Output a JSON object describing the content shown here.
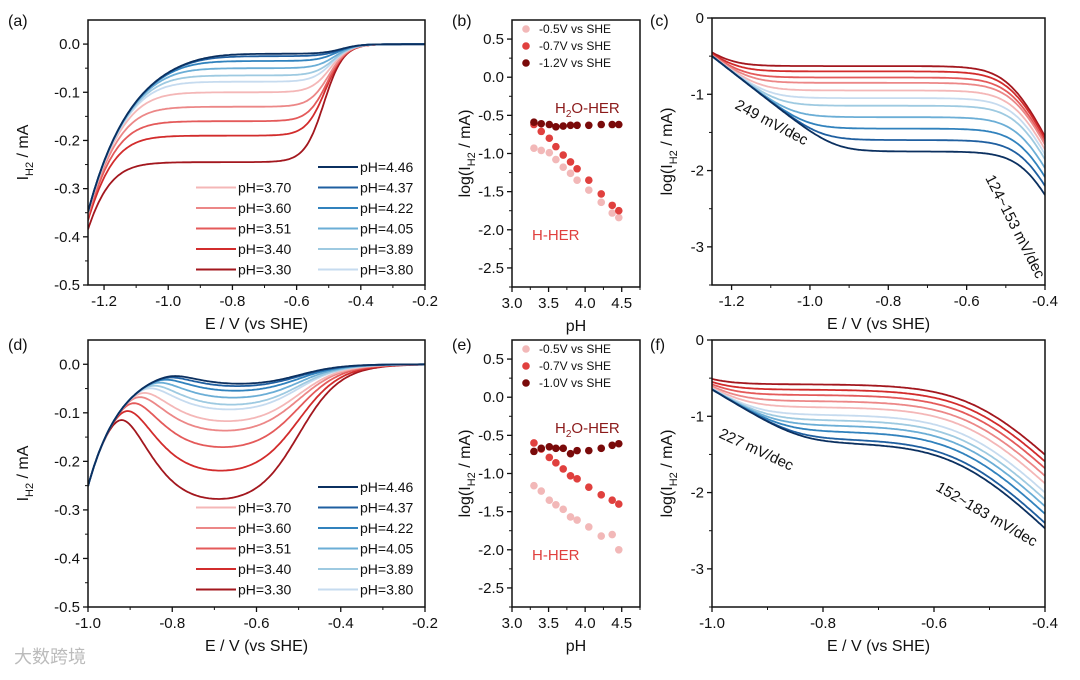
{
  "watermark": "大数跨境",
  "series_info": [
    {
      "name": "pH=3.30",
      "pH": 3.3,
      "color": "#a3171e"
    },
    {
      "name": "pH=3.40",
      "pH": 3.4,
      "color": "#d22c2c"
    },
    {
      "name": "pH=3.51",
      "pH": 3.51,
      "color": "#e45a5a"
    },
    {
      "name": "pH=3.60",
      "pH": 3.6,
      "color": "#ec8787"
    },
    {
      "name": "pH=3.70",
      "pH": 3.7,
      "color": "#f4b7b7"
    },
    {
      "name": "pH=3.80",
      "pH": 3.8,
      "color": "#c6dbef"
    },
    {
      "name": "pH=3.89",
      "pH": 3.89,
      "color": "#9ecae1"
    },
    {
      "name": "pH=4.05",
      "pH": 4.05,
      "color": "#6baed6"
    },
    {
      "name": "pH=4.22",
      "pH": 4.22,
      "color": "#3182bd"
    },
    {
      "name": "pH=4.37",
      "pH": 4.37,
      "color": "#1f5fa0"
    },
    {
      "name": "pH=4.46",
      "pH": 4.46,
      "color": "#0b3060"
    }
  ],
  "chart_data": [
    {
      "id": "a",
      "panel_label": "(a)",
      "type": "line",
      "xlabel": "E / V (vs SHE)",
      "ylabel": {
        "main": "I",
        "sub": "H2",
        "rest": " / mA"
      },
      "xlim": [
        -1.25,
        -0.2
      ],
      "ylim": [
        -0.5,
        0.05
      ],
      "xticks": [
        "-1.2",
        "-1.0",
        "-0.8",
        "-0.6",
        "-0.4",
        "-0.2"
      ],
      "yticks": [
        "0.0",
        "-0.1",
        "-0.2",
        "-0.3",
        "-0.4",
        "-0.5"
      ],
      "model": "I = -softmax3(plateau*sigmoid((E-e_half)/0.03), 0.02*exp(-(E+0.85)/0.14))",
      "plateau": [
        -0.245,
        -0.19,
        -0.16,
        -0.13,
        -0.1,
        -0.078,
        -0.065,
        -0.05,
        -0.035,
        -0.025,
        -0.02
      ],
      "e_half": [
        -0.515,
        -0.51,
        -0.505,
        -0.5,
        -0.495,
        -0.49,
        -0.485,
        -0.48,
        -0.475,
        -0.465,
        -0.46
      ]
    },
    {
      "id": "b",
      "panel_label": "(b)",
      "type": "scatter",
      "xlabel": "pH",
      "ylabel": {
        "main": "log(I",
        "sub": "H2",
        "rest": " / mA)"
      },
      "xlim": [
        3.0,
        4.75
      ],
      "ylim": [
        -2.75,
        0.75
      ],
      "xticks": [
        "3.0",
        "3.5",
        "4.0",
        "4.5"
      ],
      "yticks": [
        "0.5",
        "0.0",
        "-0.5",
        "-1.0",
        "-1.5",
        "-2.0",
        "-2.5"
      ],
      "x": [
        3.3,
        3.4,
        3.51,
        3.6,
        3.7,
        3.8,
        3.89,
        4.05,
        4.22,
        4.37,
        4.46
      ],
      "series": [
        {
          "name": "-0.5V vs SHE",
          "color": "#f2b8b8",
          "values": [
            -0.93,
            -0.96,
            -0.99,
            -1.08,
            -1.18,
            -1.26,
            -1.35,
            -1.48,
            -1.64,
            -1.78,
            -1.84
          ]
        },
        {
          "name": "-0.7V vs SHE",
          "color": "#e0403e",
          "values": [
            -0.62,
            -0.71,
            -0.8,
            -0.91,
            -1.02,
            -1.11,
            -1.2,
            -1.35,
            -1.53,
            -1.68,
            -1.75
          ]
        },
        {
          "name": "-1.2V vs SHE",
          "color": "#7a0a0a",
          "values": [
            -0.59,
            -0.61,
            -0.62,
            -0.65,
            -0.64,
            -0.63,
            -0.63,
            -0.63,
            -0.62,
            -0.62,
            -0.62
          ]
        }
      ],
      "annotations": {
        "h2o": {
          "main": "H",
          "sub": "2",
          "rest": "O-HER"
        },
        "h": "H-HER"
      }
    },
    {
      "id": "c",
      "panel_label": "(c)",
      "type": "line",
      "xlabel": "E / V (vs SHE)",
      "ylabel": {
        "main": "log(I",
        "sub": "H2",
        "rest": " / mA)"
      },
      "xlim": [
        -1.25,
        -0.4
      ],
      "ylim": [
        -3.5,
        0
      ],
      "xticks": [
        "-1.2",
        "-1.0",
        "-0.8",
        "-0.6",
        "-0.4"
      ],
      "yticks": [
        "0",
        "-1",
        "-2",
        "-3"
      ],
      "model": "log10 softmax3(10^plateau*sigmoid((E-e_half)/0.04), 10^(-0.5-(E+1.25)/0.249))",
      "plateau": [
        -0.63,
        -0.7,
        -0.78,
        -0.85,
        -0.95,
        -1.05,
        -1.15,
        -1.3,
        -1.45,
        -1.6,
        -1.75
      ],
      "e_half": [
        -0.48,
        -0.476,
        -0.472,
        -0.468,
        -0.464,
        -0.46,
        -0.456,
        -0.452,
        -0.448,
        -0.444,
        -0.44
      ],
      "annotations": [
        "249 mV/dec",
        "124~153 mV/dec"
      ]
    },
    {
      "id": "d",
      "panel_label": "(d)",
      "type": "line",
      "xlabel": "E / V (vs SHE)",
      "ylabel": {
        "main": "I",
        "sub": "H2",
        "rest": " / mA"
      },
      "xlim": [
        -1.0,
        -0.2
      ],
      "ylim": [
        -0.5,
        0.05
      ],
      "xticks": [
        "-1.0",
        "-0.8",
        "-0.6",
        "-0.4",
        "-0.2"
      ],
      "yticks": [
        "0.0",
        "-0.1",
        "-0.2",
        "-0.3",
        "-0.4",
        "-0.5"
      ],
      "model": "I = -softmax3(plateau*sigmoid((E-e_half)/0.05)*sigmoid((e_decay-E)/0.05), 0.03*exp(-(E+0.83)/0.08))",
      "plateau": [
        -0.29,
        -0.23,
        -0.18,
        -0.145,
        -0.125,
        -0.1,
        -0.09,
        -0.075,
        -0.06,
        -0.05,
        -0.045
      ],
      "e_half": [
        -0.5,
        -0.5,
        -0.5,
        -0.5,
        -0.5,
        -0.5,
        -0.5,
        -0.5,
        -0.5,
        -0.5,
        -0.5
      ],
      "e_decay": [
        -0.88,
        -0.87,
        -0.86,
        -0.85,
        -0.84,
        -0.83,
        -0.82,
        -0.81,
        -0.8,
        -0.79,
        -0.78
      ]
    },
    {
      "id": "e",
      "panel_label": "(e)",
      "type": "scatter",
      "xlabel": "pH",
      "ylabel": {
        "main": "log(I",
        "sub": "H2",
        "rest": " / mA)"
      },
      "xlim": [
        3.0,
        4.75
      ],
      "ylim": [
        -2.75,
        0.75
      ],
      "xticks": [
        "3.0",
        "3.5",
        "4.0",
        "4.5"
      ],
      "yticks": [
        "0.5",
        "0.0",
        "-0.5",
        "-1.0",
        "-1.5",
        "-2.0",
        "-2.5"
      ],
      "x": [
        3.3,
        3.4,
        3.51,
        3.6,
        3.7,
        3.8,
        3.89,
        4.05,
        4.22,
        4.37,
        4.46
      ],
      "series": [
        {
          "name": "-0.5V vs SHE",
          "color": "#f2b8b8",
          "values": [
            -1.16,
            -1.23,
            -1.35,
            -1.41,
            -1.47,
            -1.57,
            -1.61,
            -1.7,
            -1.82,
            -1.8,
            -2.0
          ]
        },
        {
          "name": "-0.7V vs SHE",
          "color": "#e0403e",
          "values": [
            -0.6,
            -0.68,
            -0.79,
            -0.86,
            -0.94,
            -1.03,
            -1.07,
            -1.18,
            -1.28,
            -1.35,
            -1.4
          ]
        },
        {
          "name": "-1.0V vs SHE",
          "color": "#7a0a0a",
          "values": [
            -0.71,
            -0.67,
            -0.65,
            -0.67,
            -0.67,
            -0.74,
            -0.7,
            -0.7,
            -0.67,
            -0.63,
            -0.61
          ]
        }
      ],
      "annotations": {
        "h2o": {
          "main": "H",
          "sub": "2",
          "rest": "O-HER"
        },
        "h": "H-HER"
      }
    },
    {
      "id": "f",
      "panel_label": "(f)",
      "type": "line",
      "xlabel": "E / V (vs SHE)",
      "ylabel": {
        "main": "log(I",
        "sub": "H2",
        "rest": " / mA)"
      },
      "xlim": [
        -1.0,
        -0.4
      ],
      "ylim": [
        -3.5,
        0
      ],
      "xticks": [
        "-1.0",
        "-0.8",
        "-0.6",
        "-0.4"
      ],
      "yticks": [
        "0",
        "-1",
        "-2",
        "-3"
      ],
      "model": "log10 softmax3(10^plateau*sigmoid((E-e_half)/0.06), 10^(-0.65-(E+1)/0.227))",
      "plateau": [
        -0.58,
        -0.65,
        -0.72,
        -0.8,
        -0.88,
        -0.98,
        -1.05,
        -1.12,
        -1.2,
        -1.3,
        -1.35
      ],
      "e_half": [
        -0.52,
        -0.523,
        -0.526,
        -0.529,
        -0.532,
        -0.535,
        -0.538,
        -0.541,
        -0.544,
        -0.547,
        -0.55
      ],
      "annotations": [
        "227 mV/dec",
        "152~183 mV/dec"
      ]
    }
  ]
}
